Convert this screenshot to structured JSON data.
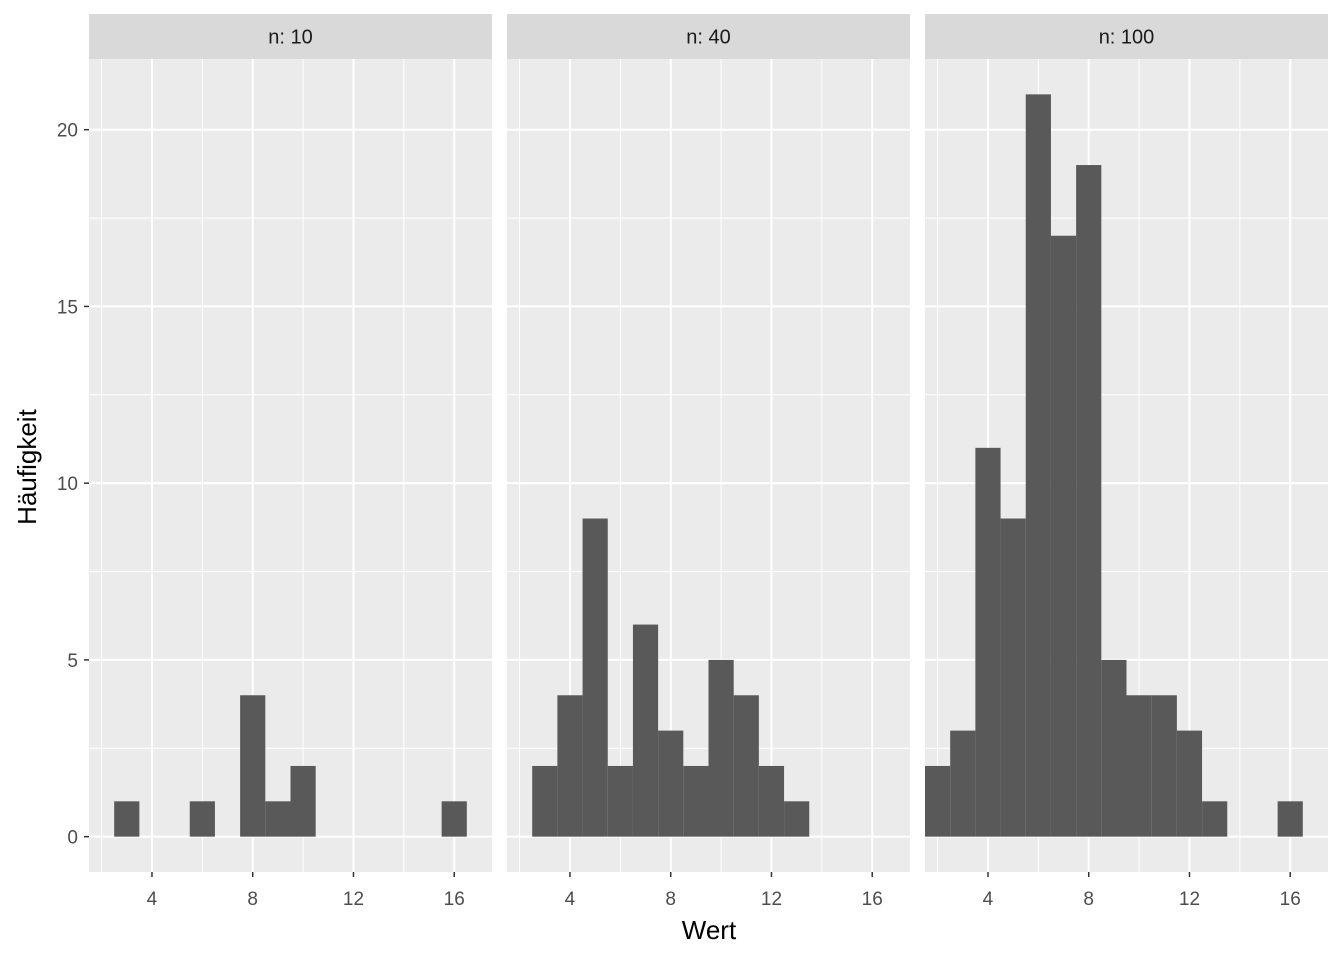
{
  "chart_data": {
    "type": "bar",
    "xlabel": "Wert",
    "ylabel": "Häufigkeit",
    "binwidth": 1,
    "xlim": [
      1.5,
      17.5
    ],
    "ylim": [
      -1,
      22
    ],
    "x_ticks": [
      4,
      8,
      12,
      16
    ],
    "y_ticks": [
      0,
      5,
      10,
      15,
      20
    ],
    "grid": true,
    "colors": {
      "bar": "#595959",
      "panel": "#ebebeb",
      "strip": "#d9d9d9",
      "grid": "#ffffff"
    },
    "facets": [
      {
        "label": "n: 10",
        "bins": [
          {
            "x": 3,
            "count": 1
          },
          {
            "x": 4,
            "count": 0
          },
          {
            "x": 5,
            "count": 0
          },
          {
            "x": 6,
            "count": 1
          },
          {
            "x": 7,
            "count": 0
          },
          {
            "x": 8,
            "count": 4
          },
          {
            "x": 9,
            "count": 1
          },
          {
            "x": 10,
            "count": 2
          },
          {
            "x": 11,
            "count": 0
          },
          {
            "x": 12,
            "count": 0
          },
          {
            "x": 13,
            "count": 0
          },
          {
            "x": 14,
            "count": 0
          },
          {
            "x": 15,
            "count": 0
          },
          {
            "x": 16,
            "count": 1
          }
        ]
      },
      {
        "label": "n: 40",
        "bins": [
          {
            "x": 3,
            "count": 2
          },
          {
            "x": 4,
            "count": 4
          },
          {
            "x": 5,
            "count": 9
          },
          {
            "x": 6,
            "count": 2
          },
          {
            "x": 7,
            "count": 6
          },
          {
            "x": 8,
            "count": 3
          },
          {
            "x": 9,
            "count": 2
          },
          {
            "x": 10,
            "count": 5
          },
          {
            "x": 11,
            "count": 4
          },
          {
            "x": 12,
            "count": 2
          },
          {
            "x": 13,
            "count": 1
          }
        ]
      },
      {
        "label": "n: 100",
        "bins": [
          {
            "x": 2,
            "count": 2
          },
          {
            "x": 3,
            "count": 3
          },
          {
            "x": 4,
            "count": 11
          },
          {
            "x": 5,
            "count": 9
          },
          {
            "x": 6,
            "count": 21
          },
          {
            "x": 7,
            "count": 17
          },
          {
            "x": 8,
            "count": 19
          },
          {
            "x": 9,
            "count": 5
          },
          {
            "x": 10,
            "count": 4
          },
          {
            "x": 11,
            "count": 4
          },
          {
            "x": 12,
            "count": 3
          },
          {
            "x": 13,
            "count": 1
          },
          {
            "x": 14,
            "count": 0
          },
          {
            "x": 15,
            "count": 0
          },
          {
            "x": 16,
            "count": 1
          }
        ]
      }
    ]
  }
}
